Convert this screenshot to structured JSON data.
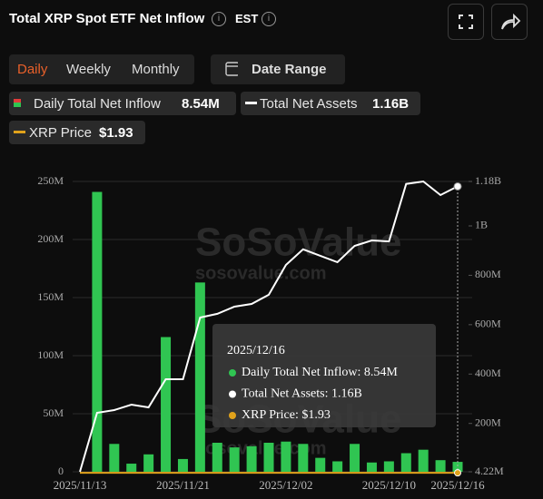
{
  "header": {
    "title": "Total XRP Spot ETF Net Inflow",
    "timezone": "EST"
  },
  "tabs": [
    "Daily",
    "Weekly",
    "Monthly"
  ],
  "date_range": "Date Range",
  "legend_values": [
    "8.54M",
    "1.16B",
    "$1.93"
  ],
  "watermark": [
    "SoSoValue",
    "sosovalue.com",
    "SoSoValue",
    "sosovalue.com"
  ],
  "tooltip": {
    "date": "2025/12/16",
    "rows": [
      "Daily Total Net Inflow: 8.54M",
      "Total Net Assets: 1.16B",
      "XRP Price: $1.93"
    ]
  },
  "chart_data": {
    "type": "bar",
    "categories": [
      "2025/11/13",
      null,
      null,
      null,
      null,
      null,
      "2025/11/21",
      null,
      null,
      null,
      null,
      null,
      "2025/12/02",
      null,
      null,
      null,
      null,
      null,
      "2025/12/10",
      null,
      null,
      null,
      "2025/12/16"
    ],
    "series": [
      {
        "name": "Daily Total Net Inflow",
        "type": "bar",
        "color": "#30c552",
        "values": [
          0,
          241000000,
          24000000,
          7000000,
          15000000,
          116000000,
          11000000,
          163000000,
          25000000,
          21000000,
          22000000,
          25000000,
          26000000,
          24000000,
          12000000,
          9000000,
          24000000,
          8000000,
          9000000,
          16000000,
          19000000,
          10000000,
          8540000
        ]
      },
      {
        "name": "Total Net Assets",
        "type": "line",
        "axis": "y2",
        "color": "#ffffff",
        "values": [
          4220000,
          243000000,
          254000000,
          276000000,
          265000000,
          379000000,
          379000000,
          629000000,
          644000000,
          673000000,
          684000000,
          721000000,
          842000000,
          905000000,
          879000000,
          853000000,
          919000000,
          941000000,
          937000000,
          1170000000,
          1180000000,
          1125000000,
          1160000000
        ]
      },
      {
        "name": "XRP Price",
        "type": "line",
        "axis": "y2",
        "color": "#e0a21b",
        "values": [
          2.45,
          2.27,
          2.22,
          2.13,
          2.15,
          2.06,
          1.99,
          2.15,
          2.22,
          2.21,
          2.18,
          2.04,
          2.17,
          2.2,
          2.07,
          2.05,
          2.09,
          2.06,
          2.06,
          2.0,
          2.0,
          1.93,
          1.93
        ]
      }
    ],
    "ylim": [
      0,
      250000000
    ],
    "yticks": [
      0,
      {
        "value": 50000000,
        "label": "50M"
      },
      {
        "value": 100000000,
        "label": "100M"
      },
      {
        "value": 150000000,
        "label": "150M"
      },
      {
        "value": 200000000,
        "label": "200M"
      },
      {
        "value": 250000000,
        "label": "250M"
      }
    ],
    "y2lim": [
      4220000,
      1180000000
    ],
    "y2ticks": [
      {
        "value": 4220000,
        "label": "4.22M"
      },
      {
        "value": 200000000,
        "label": "200M"
      },
      {
        "value": 400000000,
        "label": "400M"
      },
      {
        "value": 600000000,
        "label": "600M"
      },
      {
        "value": 800000000,
        "label": "800M"
      },
      {
        "value": 1000000000,
        "label": "1B"
      },
      {
        "value": 1180000000,
        "label": "1.18B"
      }
    ],
    "grid": true
  }
}
